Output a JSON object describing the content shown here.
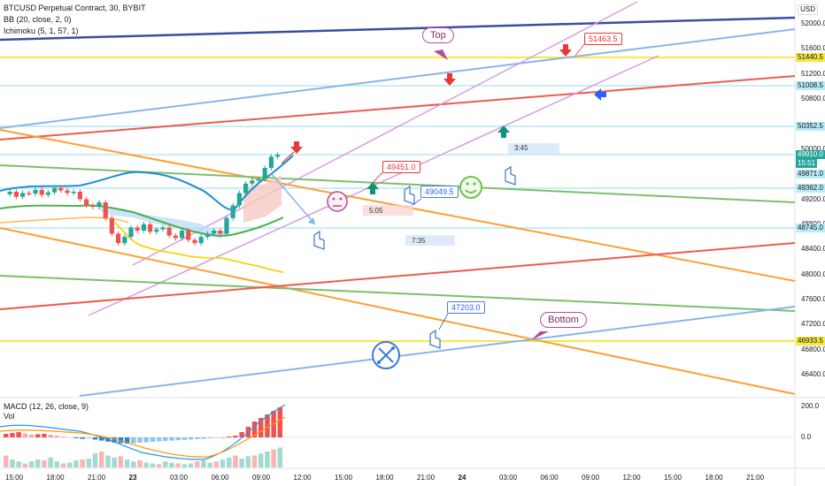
{
  "chart_data": {
    "type": "candlestick",
    "title": "BTCUSD Perpetual Contract, 30, BYBIT",
    "indicators": [
      "BB (20, close, 2, 0)",
      "Ichimoku (5, 1, 57, 1)"
    ],
    "currency": "USD",
    "current_price": "49910.0",
    "countdown": "15:51",
    "price_axis": [
      "52000.0",
      "51600.0",
      "51200.0",
      "50800.0",
      "50000.0",
      "49200.0",
      "48800.0",
      "48400.0",
      "48000.0",
      "47600.0",
      "47200.0",
      "46800.0",
      "46400.0"
    ],
    "price_labels": [
      {
        "text": "51440.5",
        "color": "#f5e942",
        "dark": true
      },
      {
        "text": "51008.5",
        "color": "#b8ecf5",
        "dark": true
      },
      {
        "text": "50352.5",
        "color": "#b8ecf5",
        "dark": true
      },
      {
        "text": "49871.0",
        "color": "#b8ecf5",
        "dark": true
      },
      {
        "text": "49362.0",
        "color": "#b8ecf5",
        "dark": true
      },
      {
        "text": "48745.0",
        "color": "#b8ecf5",
        "dark": true
      },
      {
        "text": "46933.5",
        "color": "#f5e942",
        "dark": true
      }
    ],
    "time_axis": [
      "15:00",
      "18:00",
      "21:00",
      "23",
      "03:00",
      "06:00",
      "09:00",
      "12:00",
      "15:00",
      "18:00",
      "21:00",
      "24",
      "03:00",
      "06:00",
      "09:00",
      "12:00",
      "15:00",
      "18:00",
      "21:00"
    ],
    "ohlc_approx": [
      49280,
      49320,
      49240,
      49300,
      49290,
      49350,
      49270,
      49310,
      49380,
      49340,
      49300,
      49320,
      49200,
      49100,
      49080,
      49150,
      48900,
      48650,
      48500,
      48600,
      48750,
      48700,
      48800,
      48680,
      48720,
      48750,
      48620,
      48580,
      48700,
      48550,
      48500,
      48600,
      48650,
      48700,
      48650,
      48900,
      49100,
      49300,
      49450,
      49500,
      49520,
      49700,
      49880,
      49910
    ]
  },
  "annotations": {
    "top_label": "Top",
    "bottom_label": "Bottom",
    "tag_51463": "51463.5",
    "tag_49451": "49451.0",
    "tag_49049": "49049.5",
    "tag_47203": "47203.0",
    "box_345": "3:45",
    "box_505": "5:05",
    "box_735": "7:35"
  },
  "macd": {
    "label": "MACD (12, 26, close, 9)",
    "vol_label": "Vol",
    "axis": [
      "200.0",
      "0.0"
    ],
    "hist": [
      20,
      25,
      30,
      22,
      15,
      18,
      20,
      15,
      10,
      5,
      0,
      -5,
      -8,
      -5,
      -12,
      -18,
      -24,
      -30,
      -32,
      -35,
      -33,
      -30,
      -28,
      -25,
      -22,
      -20,
      -18,
      -16,
      -14,
      -12,
      -10,
      -8,
      -5,
      -3,
      0,
      5,
      10,
      30,
      60,
      90,
      110,
      130,
      150,
      170
    ],
    "vol": [
      30,
      20,
      15,
      10,
      15,
      20,
      18,
      25,
      15,
      10,
      12,
      18,
      20,
      22,
      35,
      40,
      30,
      25,
      28,
      20,
      15,
      18,
      12,
      10,
      8,
      15,
      12,
      10,
      8,
      10,
      15,
      18,
      12,
      15,
      20,
      25,
      30,
      22,
      28,
      30,
      35,
      40,
      45,
      50
    ]
  },
  "colors": {
    "blue_trend": "#8ab4ea",
    "red_trend": "#ef5a4f",
    "orange_trend": "#ff9f30",
    "green_trend": "#7dbf6e",
    "violet_channel": "#d89ce0",
    "navy_trend": "#3d4d9e",
    "yellow_level": "#f5e942",
    "cyan_level": "#a8e4f0",
    "up_candle": "#26a69a",
    "down_candle": "#ef5350"
  }
}
